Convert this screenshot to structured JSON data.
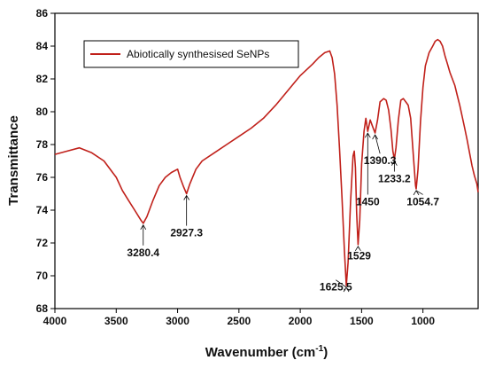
{
  "chart_data": {
    "type": "line",
    "xlabel_main": "Wavenumber (cm",
    "xlabel_sup": "-1",
    "xlabel_end": ")",
    "ylabel": "Transmittance",
    "xlim": [
      4000,
      550
    ],
    "ylim": [
      68,
      86
    ],
    "x_ticks": [
      4000,
      3500,
      3000,
      2500,
      2000,
      1500,
      1000
    ],
    "y_ticks": [
      68,
      70,
      72,
      74,
      76,
      78,
      80,
      82,
      84,
      86
    ],
    "grid": false,
    "legend_position": "top-left",
    "series": [
      {
        "name": "Abiotically synthesised SeNPs",
        "color": "#c0201a",
        "x": [
          4000,
          3900,
          3800,
          3700,
          3600,
          3500,
          3450,
          3400,
          3350,
          3300,
          3280,
          3250,
          3200,
          3150,
          3100,
          3050,
          3000,
          2980,
          2950,
          2927,
          2900,
          2850,
          2800,
          2700,
          2600,
          2500,
          2400,
          2300,
          2200,
          2100,
          2000,
          1900,
          1850,
          1800,
          1760,
          1740,
          1720,
          1700,
          1680,
          1660,
          1640,
          1625,
          1610,
          1590,
          1570,
          1560,
          1550,
          1540,
          1529,
          1515,
          1500,
          1480,
          1465,
          1450,
          1430,
          1410,
          1390,
          1370,
          1350,
          1320,
          1300,
          1280,
          1260,
          1245,
          1233,
          1220,
          1200,
          1180,
          1160,
          1140,
          1120,
          1100,
          1080,
          1060,
          1055,
          1040,
          1020,
          1000,
          980,
          950,
          920,
          900,
          880,
          860,
          840,
          820,
          800,
          780,
          760,
          740,
          720,
          700,
          680,
          660,
          640,
          620,
          600,
          580,
          560,
          550
        ],
        "y": [
          77.4,
          77.6,
          77.8,
          77.5,
          77.0,
          76.0,
          75.2,
          74.6,
          74.0,
          73.4,
          73.2,
          73.6,
          74.6,
          75.5,
          76.0,
          76.3,
          76.5,
          76.0,
          75.4,
          75.0,
          75.6,
          76.5,
          77.0,
          77.5,
          78.0,
          78.5,
          79.0,
          79.6,
          80.4,
          81.3,
          82.2,
          82.9,
          83.3,
          83.6,
          83.7,
          83.3,
          82.3,
          80.4,
          77.8,
          74.8,
          71.5,
          69.4,
          70.8,
          74.5,
          77.3,
          77.6,
          76.6,
          73.8,
          71.9,
          73.4,
          76.8,
          78.8,
          79.6,
          78.8,
          79.5,
          79.1,
          78.7,
          79.5,
          80.6,
          80.8,
          80.7,
          80.1,
          78.9,
          77.6,
          77.1,
          77.8,
          79.5,
          80.7,
          80.8,
          80.6,
          80.4,
          79.6,
          77.5,
          75.5,
          75.3,
          76.5,
          79.4,
          81.5,
          82.8,
          83.6,
          84.0,
          84.3,
          84.4,
          84.3,
          84.0,
          83.4,
          82.9,
          82.4,
          82.0,
          81.6,
          81.0,
          80.4,
          79.7,
          79.0,
          78.3,
          77.5,
          76.7,
          76.1,
          75.6,
          75.1
        ]
      }
    ],
    "annotations": [
      {
        "label": "3280.4",
        "x": 3280,
        "y": 73.2,
        "text_x": 3280,
        "text_y": 71.2,
        "anchor": "middle"
      },
      {
        "label": "2927.3",
        "x": 2927,
        "y": 75.0,
        "text_x": 2927,
        "text_y": 72.4,
        "anchor": "middle"
      },
      {
        "label": "1625.5",
        "x": 1625,
        "y": 69.4,
        "text_x": 1710,
        "text_y": 69.1,
        "anchor": "middle"
      },
      {
        "label": "1529",
        "x": 1529,
        "y": 71.9,
        "text_x": 1520,
        "text_y": 71.0,
        "anchor": "middle"
      },
      {
        "label": "1450",
        "x": 1450,
        "y": 78.8,
        "text_x": 1450,
        "text_y": 74.3,
        "anchor": "middle"
      },
      {
        "label": "1390.3",
        "x": 1390,
        "y": 78.7,
        "text_x": 1350,
        "text_y": 76.8,
        "anchor": "middle"
      },
      {
        "label": "1233.2",
        "x": 1233,
        "y": 77.1,
        "text_x": 1233,
        "text_y": 75.7,
        "anchor": "middle"
      },
      {
        "label": "1054.7",
        "x": 1055,
        "y": 75.3,
        "text_x": 1000,
        "text_y": 74.3,
        "anchor": "middle"
      }
    ]
  }
}
